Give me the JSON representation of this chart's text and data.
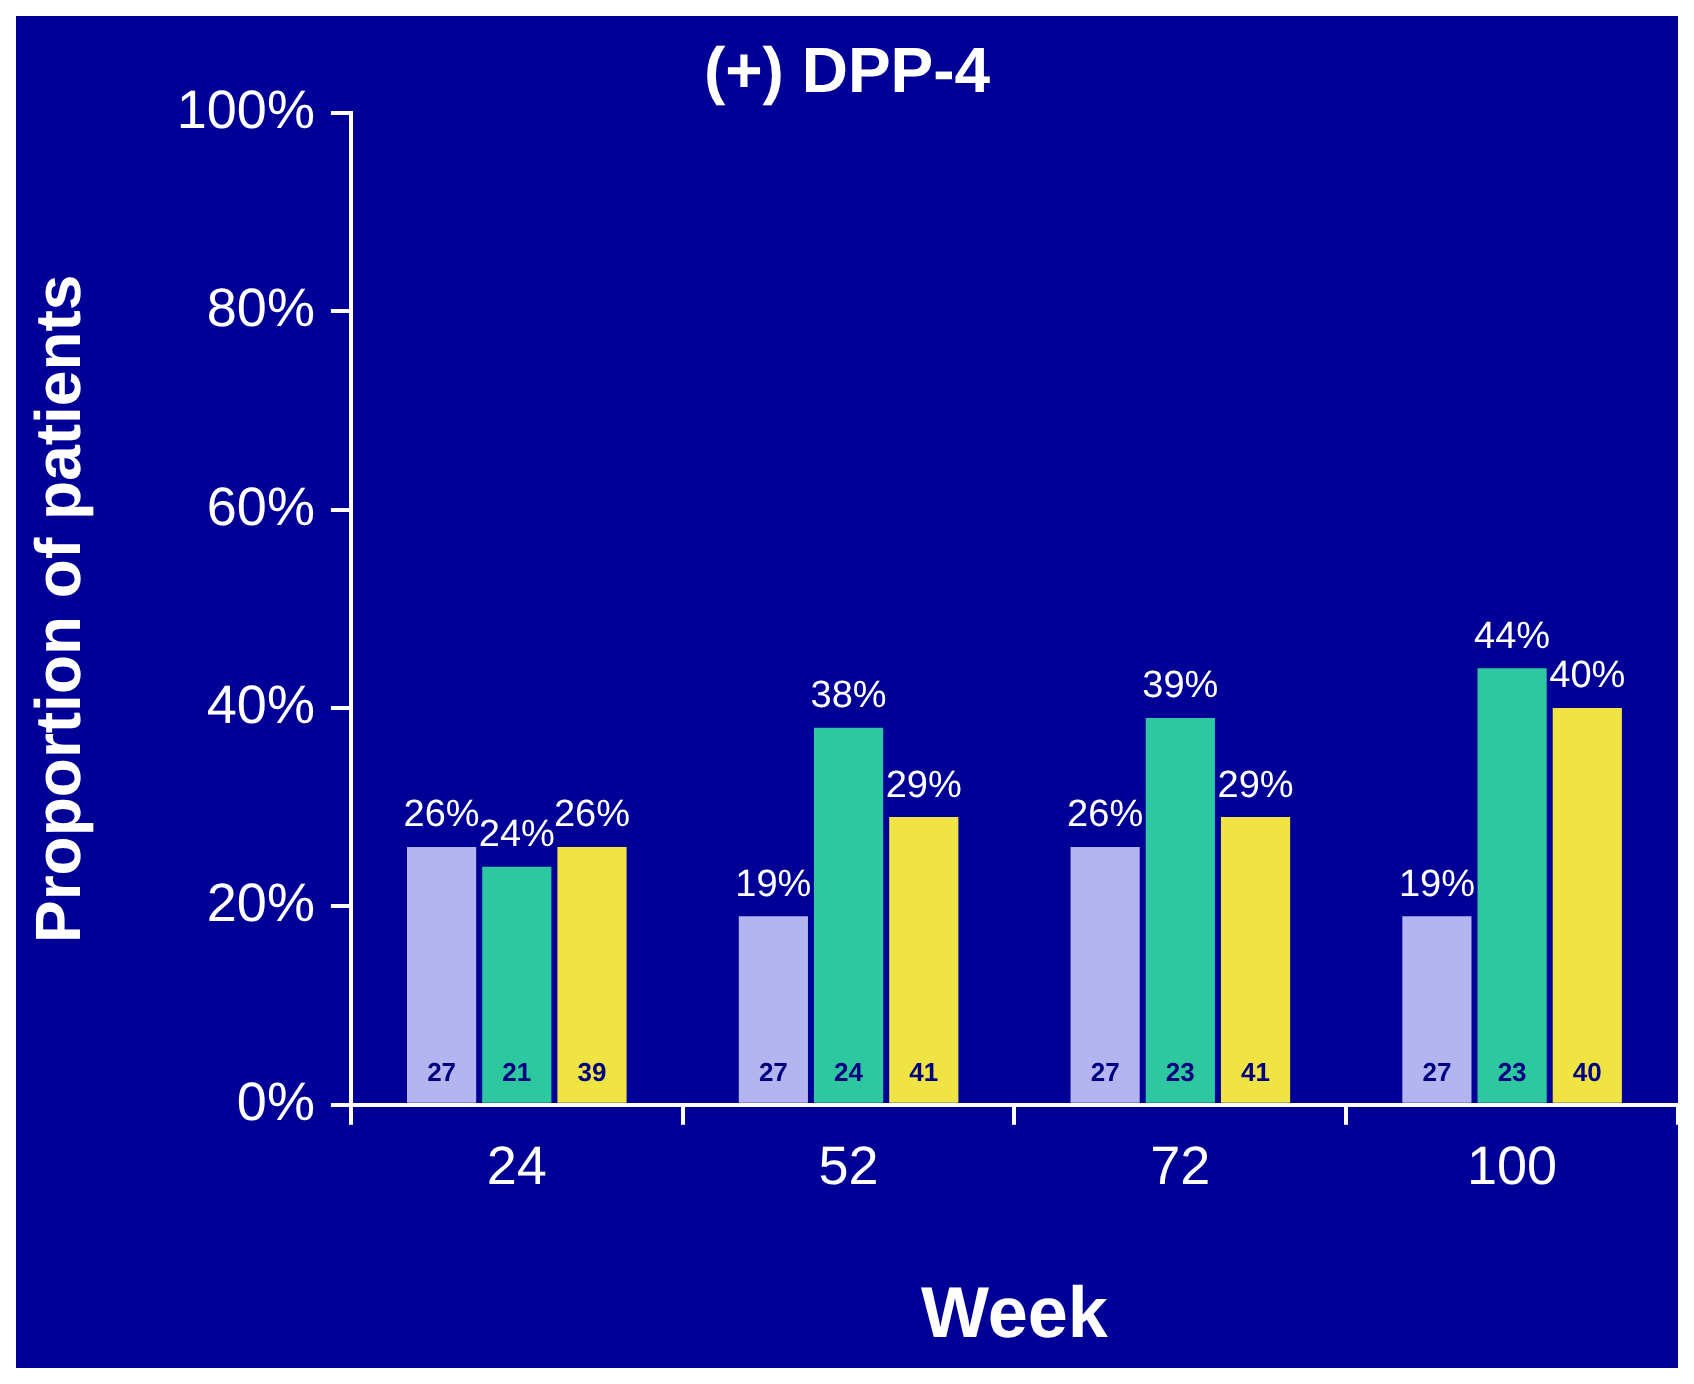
{
  "chart_data": {
    "type": "bar",
    "title": "(+) DPP-4",
    "xlabel": "Week",
    "ylabel": "Proportion of patients",
    "categories": [
      "24",
      "52",
      "72",
      "100"
    ],
    "series": [
      {
        "color": "#b4b4f0",
        "values": [
          26,
          19,
          26,
          19
        ],
        "value_labels": [
          "26%",
          "19%",
          "26%",
          "19%"
        ]
      },
      {
        "color": "#2ec8a0",
        "values": [
          24,
          38,
          39,
          44
        ],
        "value_labels": [
          "24%",
          "38%",
          "39%",
          "44%"
        ]
      },
      {
        "color": "#f0e444",
        "values": [
          26,
          29,
          29,
          40
        ],
        "value_labels": [
          "26%",
          "29%",
          "29%",
          "40%"
        ]
      }
    ],
    "annotations": [
      "27",
      "21",
      "39",
      "27",
      "24",
      "41",
      "27",
      "23",
      "41",
      "27",
      "23",
      "40"
    ],
    "ylim": [
      0,
      100
    ],
    "yticks": [
      {
        "value": 0,
        "label": "0%"
      },
      {
        "value": 20,
        "label": "20%"
      },
      {
        "value": 40,
        "label": "40%"
      },
      {
        "value": 60,
        "label": "60%"
      },
      {
        "value": 80,
        "label": "80%"
      },
      {
        "value": 100,
        "label": "100%"
      }
    ],
    "grid": false,
    "legend": false
  }
}
